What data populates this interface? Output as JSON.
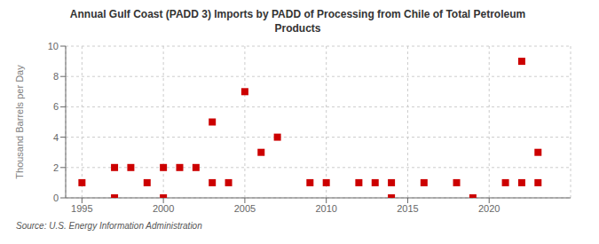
{
  "chart_data": {
    "type": "scatter",
    "title": "Annual Gulf Coast (PADD 3) Imports by PADD of Processing from Chile of Total Petroleum\nProducts",
    "y_label": "Thousand Barrels per Day",
    "annotation": "Source: U.S. Energy Information Administration",
    "x": [
      1995,
      1997,
      1997,
      1998,
      1999,
      2000,
      2000,
      2001,
      2002,
      2003,
      2003,
      2004,
      2005,
      2006,
      2007,
      2009,
      2010,
      2012,
      2013,
      2014,
      2014,
      2016,
      2018,
      2019,
      2021,
      2022,
      2022,
      2023,
      2023
    ],
    "values": [
      1,
      2,
      0,
      2,
      1,
      2,
      0,
      2,
      2,
      5,
      1,
      1,
      7,
      3,
      4,
      1,
      1,
      1,
      1,
      1,
      0,
      1,
      1,
      0,
      1,
      9,
      1,
      3,
      1
    ],
    "color": "#cc0000",
    "marker": "square",
    "xlim": [
      1994,
      2025
    ],
    "ylim": [
      0,
      10
    ],
    "xticks": [
      1995,
      2000,
      2005,
      2010,
      2015,
      2020
    ],
    "yticks": [
      0,
      2,
      4,
      6,
      8,
      10
    ],
    "grid": true
  }
}
